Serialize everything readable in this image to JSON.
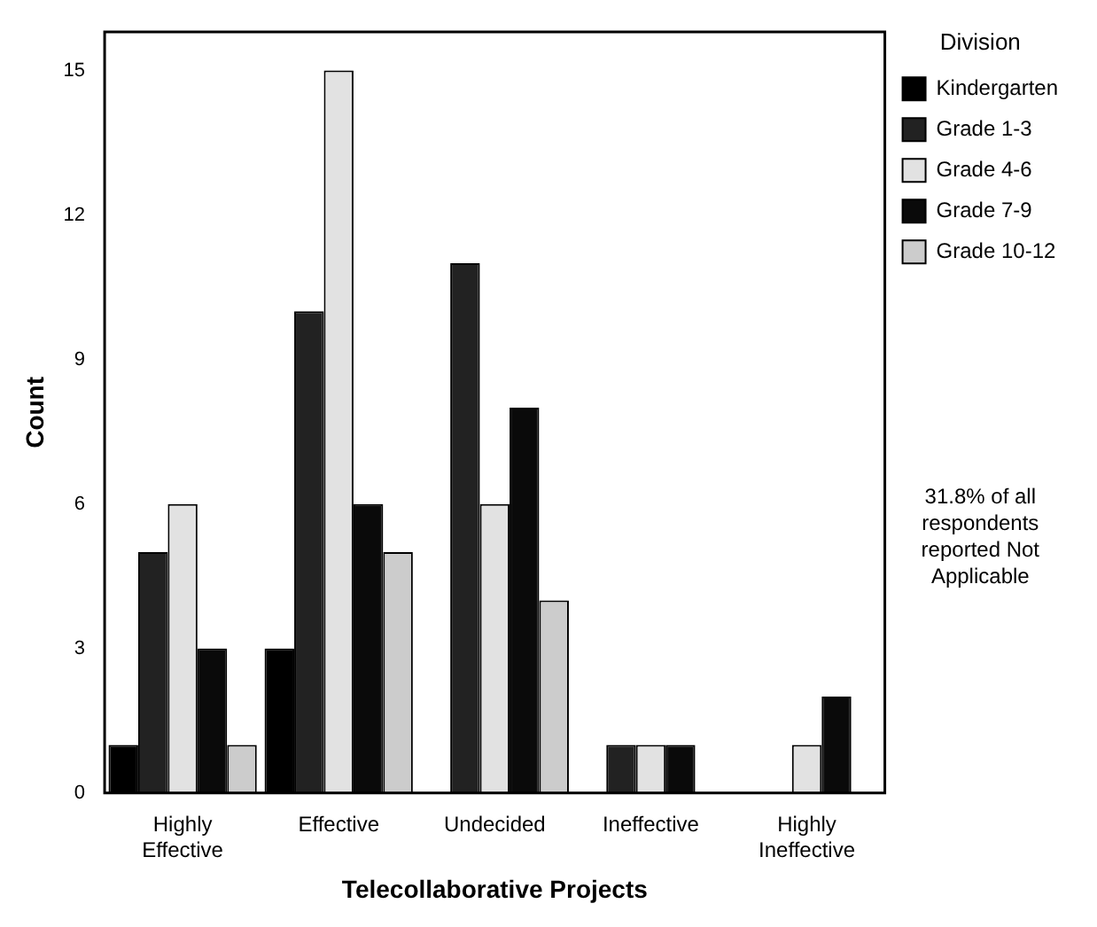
{
  "chart_data": {
    "type": "bar",
    "xlabel": "Telecollaborative Projects",
    "ylabel": "Count",
    "legend_title": "Division",
    "categories": [
      "Highly Effective",
      "Effective",
      "Undecided",
      "Ineffective",
      "Highly Ineffective"
    ],
    "series": [
      {
        "name": "Kindergarten",
        "color": "#000000",
        "values": [
          1,
          3,
          0,
          0,
          0
        ]
      },
      {
        "name": "Grade 1-3",
        "color": "#222222",
        "values": [
          5,
          10,
          11,
          1,
          0
        ]
      },
      {
        "name": "Grade 4-6",
        "color": "#e2e2e2",
        "values": [
          6,
          15,
          6,
          1,
          1
        ]
      },
      {
        "name": "Grade 7-9",
        "color": "#0a0a0a",
        "values": [
          3,
          6,
          8,
          1,
          2
        ]
      },
      {
        "name": "Grade 10-12",
        "color": "#cccccc",
        "values": [
          1,
          5,
          4,
          0,
          0
        ]
      }
    ],
    "ylim": [
      0,
      15.8
    ],
    "yticks": [
      0,
      3,
      6,
      9,
      12,
      15
    ],
    "grid": false,
    "legend": "right",
    "annotations": [
      "31.8% of all respondents reported Not Applicable"
    ]
  }
}
